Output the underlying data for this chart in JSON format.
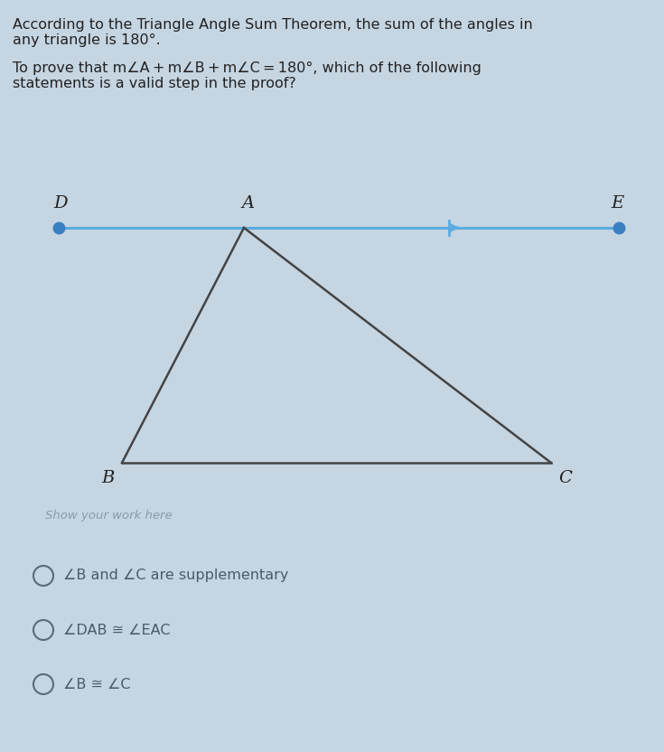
{
  "bg_color": "#c5d5e2",
  "diagram_bg": "#d8e6f0",
  "title_lines": [
    "According to the Triangle Angle Sum Theorem, the sum of the angles in",
    "any triangle is 180°."
  ],
  "question_line1": "To prove that m∠A + m∠B + m∠C = 180°, which of the following",
  "question_line2": "statements is a valid step in the proof?",
  "show_work_text": "Show your work here",
  "triangle": {
    "A": [
      0.315,
      0.735
    ],
    "B": [
      0.155,
      0.415
    ],
    "C": [
      0.735,
      0.415
    ]
  },
  "line_DE": {
    "D": [
      0.07,
      0.735
    ],
    "E": [
      0.93,
      0.735
    ]
  },
  "line_color": "#5aace0",
  "triangle_color": "#444444",
  "dot_color": "#3a7fc1",
  "label_D": "D",
  "label_A": "A",
  "label_E": "E",
  "label_B": "B",
  "label_C": "C",
  "options": [
    "∠B and ∠C are supplementary",
    "∠DAB ≅ ∠EAC",
    "∠B ≅ ∠C"
  ],
  "option_text_color": "#4a5a6a",
  "show_work_color": "#8a9aaa",
  "title_color": "#222222",
  "question_color": "#222222"
}
